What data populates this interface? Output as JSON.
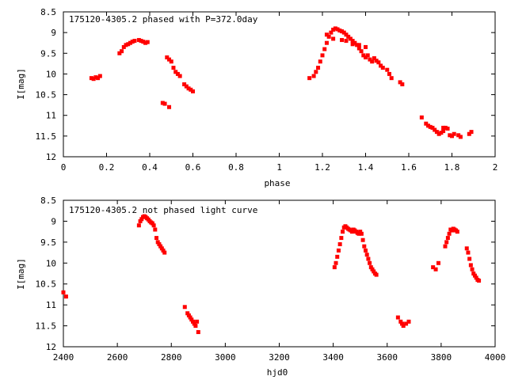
{
  "chart_data": [
    {
      "type": "scatter",
      "title": "175120-4305.2 phased with P=372.0day",
      "xlabel": "phase",
      "ylabel": "I[mag]",
      "xlim": [
        0,
        2
      ],
      "ylim": [
        12,
        8.5
      ],
      "y_inverted": true,
      "xticks": [
        "0",
        "0.2",
        "0.4",
        "0.6",
        "0.8",
        "1",
        "1.2",
        "1.4",
        "1.6",
        "1.8",
        "2"
      ],
      "yticks": [
        "8.5",
        "9",
        "9.5",
        "10",
        "10.5",
        "11",
        "11.5",
        "12"
      ],
      "grid": false,
      "color": "#ff0000",
      "series": [
        {
          "x": [
            0.13,
            0.14,
            0.15,
            0.16,
            0.17,
            0.26,
            0.27,
            0.28,
            0.29,
            0.3,
            0.31,
            0.32,
            0.33,
            0.35,
            0.36,
            0.37,
            0.38,
            0.39,
            0.48,
            0.49,
            0.5,
            0.51,
            0.52,
            0.53,
            0.54,
            0.56,
            0.57,
            0.58,
            0.59,
            0.6,
            0.46,
            0.47,
            0.49,
            1.14,
            1.16,
            1.17,
            1.18,
            1.19,
            1.2,
            1.21,
            1.22,
            1.23,
            1.24,
            1.25,
            1.26,
            1.27,
            1.28,
            1.29,
            1.3,
            1.31,
            1.32,
            1.33,
            1.34,
            1.35,
            1.36,
            1.37,
            1.38,
            1.39,
            1.4,
            1.41,
            1.42,
            1.43,
            1.44,
            1.45,
            1.46,
            1.47,
            1.48,
            1.5,
            1.51,
            1.52,
            1.56,
            1.57,
            1.22,
            1.25,
            1.29,
            1.31,
            1.34,
            1.37,
            1.4,
            1.66,
            1.68,
            1.69,
            1.7,
            1.71,
            1.72,
            1.73,
            1.74,
            1.75,
            1.76,
            1.77,
            1.78,
            1.79,
            1.8,
            1.81,
            1.83,
            1.84,
            1.88,
            1.89,
            1.76
          ],
          "y": [
            10.1,
            10.12,
            10.08,
            10.1,
            10.05,
            9.5,
            9.45,
            9.35,
            9.3,
            9.28,
            9.25,
            9.22,
            9.2,
            9.18,
            9.2,
            9.22,
            9.25,
            9.23,
            9.6,
            9.65,
            9.7,
            9.85,
            9.95,
            10.0,
            10.05,
            10.25,
            10.3,
            10.35,
            10.38,
            10.42,
            10.7,
            10.72,
            10.8,
            10.1,
            10.05,
            9.95,
            9.85,
            9.7,
            9.55,
            9.4,
            9.25,
            9.1,
            9.0,
            8.93,
            8.9,
            8.92,
            8.95,
            8.97,
            9.0,
            9.05,
            9.1,
            9.15,
            9.2,
            9.25,
            9.3,
            9.38,
            9.45,
            9.55,
            9.6,
            9.55,
            9.65,
            9.7,
            9.62,
            9.68,
            9.72,
            9.8,
            9.85,
            9.9,
            10.0,
            10.1,
            10.2,
            10.25,
            9.05,
            9.15,
            9.18,
            9.2,
            9.28,
            9.3,
            9.35,
            11.05,
            11.2,
            11.25,
            11.28,
            11.3,
            11.35,
            11.4,
            11.45,
            11.42,
            11.38,
            11.3,
            11.32,
            11.48,
            11.5,
            11.45,
            11.48,
            11.52,
            11.45,
            11.4,
            11.3
          ]
        }
      ]
    },
    {
      "type": "scatter",
      "title": "175120-4305.2 not phased light curve",
      "xlabel": "hjd0",
      "ylabel": "I[mag]",
      "xlim": [
        2400,
        4000
      ],
      "ylim": [
        12,
        8.5
      ],
      "y_inverted": true,
      "xticks": [
        "2400",
        "2600",
        "2800",
        "3000",
        "3200",
        "3400",
        "3600",
        "3800",
        "4000"
      ],
      "yticks": [
        "8.5",
        "9",
        "9.5",
        "10",
        "10.5",
        "11",
        "11.5",
        "12"
      ],
      "grid": false,
      "color": "#ff0000",
      "series": [
        {
          "x": [
            2400,
            2410,
            2680,
            2685,
            2690,
            2695,
            2700,
            2705,
            2710,
            2715,
            2720,
            2725,
            2730,
            2735,
            2740,
            2745,
            2750,
            2755,
            2760,
            2765,
            2770,
            2775,
            2850,
            2860,
            2865,
            2870,
            2875,
            2880,
            2885,
            2890,
            2895,
            2900,
            3405,
            3410,
            3415,
            3420,
            3425,
            3430,
            3435,
            3440,
            3445,
            3450,
            3455,
            3460,
            3465,
            3470,
            3475,
            3480,
            3485,
            3490,
            3495,
            3500,
            3505,
            3510,
            3515,
            3520,
            3525,
            3530,
            3535,
            3540,
            3545,
            3550,
            3555,
            3560,
            3640,
            3650,
            3655,
            3660,
            3670,
            3680,
            3770,
            3780,
            3790,
            3815,
            3820,
            3825,
            3830,
            3835,
            3840,
            3845,
            3850,
            3855,
            3860,
            3895,
            3900,
            3905,
            3910,
            3915,
            3920,
            3925,
            3930,
            3935,
            3940
          ],
          "y": [
            10.7,
            10.8,
            9.1,
            9.0,
            8.95,
            8.9,
            8.88,
            8.9,
            8.93,
            8.96,
            9.0,
            9.03,
            9.05,
            9.1,
            9.2,
            9.4,
            9.5,
            9.55,
            9.6,
            9.65,
            9.7,
            9.75,
            11.05,
            11.2,
            11.25,
            11.3,
            11.35,
            11.4,
            11.45,
            11.5,
            11.4,
            11.65,
            10.1,
            10.0,
            9.85,
            9.7,
            9.55,
            9.4,
            9.25,
            9.15,
            9.12,
            9.15,
            9.18,
            9.2,
            9.22,
            9.25,
            9.2,
            9.22,
            9.25,
            9.28,
            9.3,
            9.25,
            9.3,
            9.45,
            9.6,
            9.7,
            9.8,
            9.9,
            10.0,
            10.1,
            10.15,
            10.2,
            10.25,
            10.28,
            11.3,
            11.4,
            11.45,
            11.5,
            11.45,
            11.4,
            10.1,
            10.15,
            10.0,
            9.6,
            9.5,
            9.4,
            9.3,
            9.2,
            9.22,
            9.18,
            9.2,
            9.22,
            9.25,
            9.65,
            9.75,
            9.9,
            10.05,
            10.15,
            10.25,
            10.3,
            10.35,
            10.4,
            10.42
          ]
        }
      ]
    }
  ]
}
